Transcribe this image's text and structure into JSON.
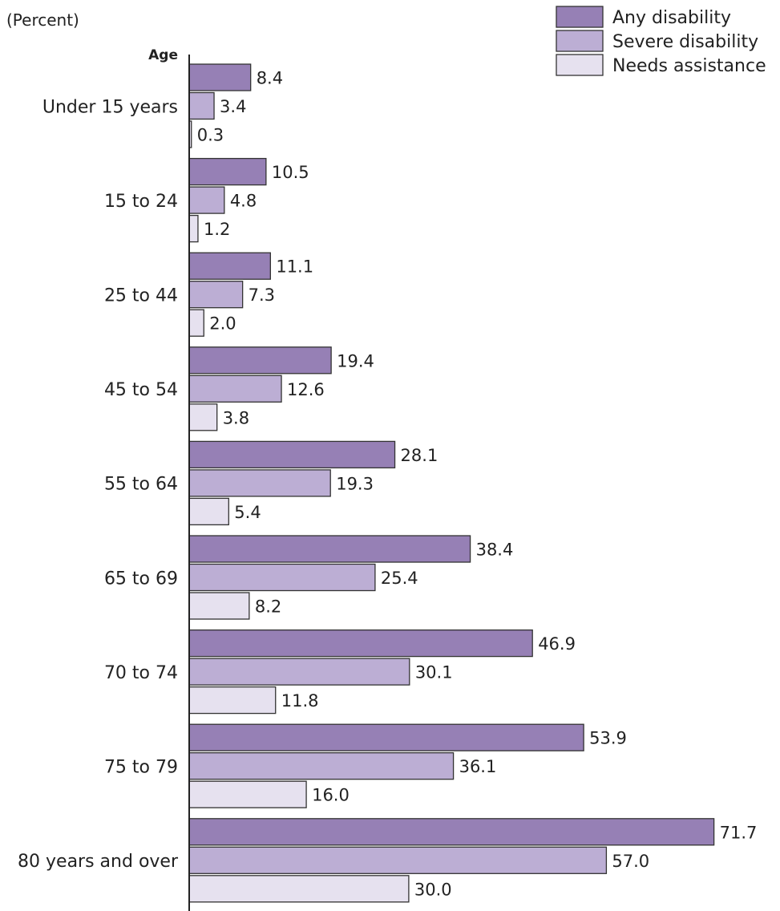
{
  "chart_data": {
    "type": "bar",
    "orientation": "horizontal",
    "unit_label": "(Percent)",
    "axis_title": "Age",
    "legend_position": "top-right",
    "grid": false,
    "xlim": [
      0,
      72
    ],
    "categories": [
      "Under 15 years",
      "15 to 24",
      "25 to 44",
      "45 to 54",
      "55 to 64",
      "65 to 69",
      "70 to 74",
      "75 to 79",
      "80 years and over"
    ],
    "series": [
      {
        "name": "Any disability",
        "color": "#9680b5",
        "values": [
          8.4,
          10.5,
          11.1,
          19.4,
          28.1,
          38.4,
          46.9,
          53.9,
          71.7
        ]
      },
      {
        "name": "Severe disability",
        "color": "#bcaed4",
        "values": [
          3.4,
          4.8,
          7.3,
          12.6,
          19.3,
          25.4,
          30.1,
          36.1,
          57.0
        ]
      },
      {
        "name": "Needs assistance",
        "color": "#e6e1ef",
        "values": [
          0.3,
          1.2,
          2.0,
          3.8,
          5.4,
          8.2,
          11.8,
          16.0,
          30.0
        ]
      }
    ]
  }
}
